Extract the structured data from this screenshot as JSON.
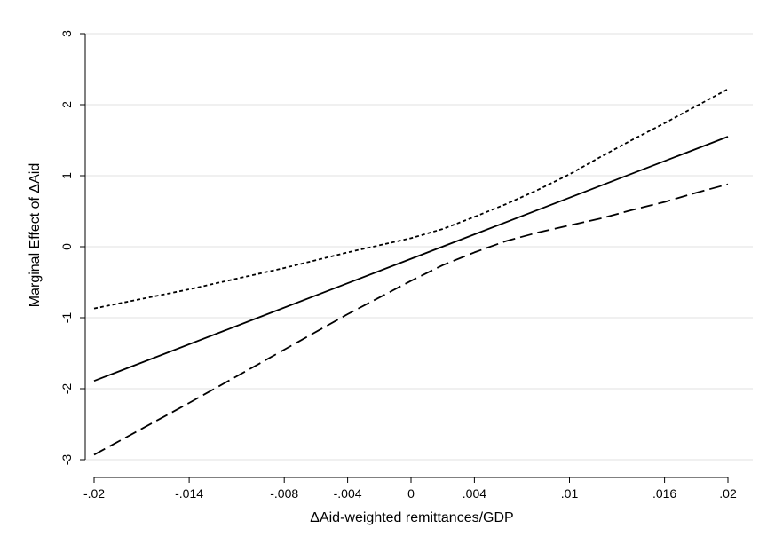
{
  "chart_data": {
    "type": "line",
    "title": "",
    "xlabel": "ΔAid-weighted remittances/GDP",
    "ylabel": "Marginal Effect of ΔAid",
    "xlim": [
      -0.02,
      0.02
    ],
    "ylim": [
      -3,
      3
    ],
    "grid": true,
    "legend": "none",
    "x_ticks": [
      -0.02,
      -0.014,
      -0.008,
      -0.004,
      0,
      0.004,
      0.01,
      0.016,
      0.02
    ],
    "x_tick_labels": [
      "-.02",
      "-.014",
      "-.008",
      "-.004",
      "0",
      ".004",
      ".01",
      ".016",
      ".02"
    ],
    "y_ticks": [
      -3,
      -2,
      -1,
      0,
      1,
      2,
      3
    ],
    "y_tick_labels": [
      "-3",
      "-2",
      "-1",
      "0",
      "1",
      "2",
      "3"
    ],
    "series": [
      {
        "style": "dotted",
        "color": "#000000",
        "x": [
          -0.02,
          -0.014,
          -0.008,
          -0.004,
          0,
          0.002,
          0.004,
          0.006,
          0.008,
          0.01,
          0.012,
          0.014,
          0.016,
          0.018,
          0.02
        ],
        "y": [
          -0.87,
          -0.6,
          -0.3,
          -0.08,
          0.12,
          0.25,
          0.42,
          0.6,
          0.8,
          1.02,
          1.27,
          1.51,
          1.74,
          1.98,
          2.22
        ]
      },
      {
        "style": "solid",
        "color": "#000000",
        "x": [
          -0.02,
          -0.01,
          0,
          0.01,
          0.02
        ],
        "y": [
          -1.89,
          -1.03,
          -0.17,
          0.69,
          1.55
        ]
      },
      {
        "style": "dashed",
        "color": "#000000",
        "x": [
          -0.02,
          -0.014,
          -0.008,
          -0.004,
          0,
          0.002,
          0.004,
          0.006,
          0.008,
          0.01,
          0.012,
          0.014,
          0.016,
          0.018,
          0.02
        ],
        "y": [
          -2.93,
          -2.2,
          -1.45,
          -0.95,
          -0.48,
          -0.26,
          -0.08,
          0.08,
          0.2,
          0.3,
          0.4,
          0.52,
          0.63,
          0.76,
          0.88
        ]
      }
    ]
  }
}
